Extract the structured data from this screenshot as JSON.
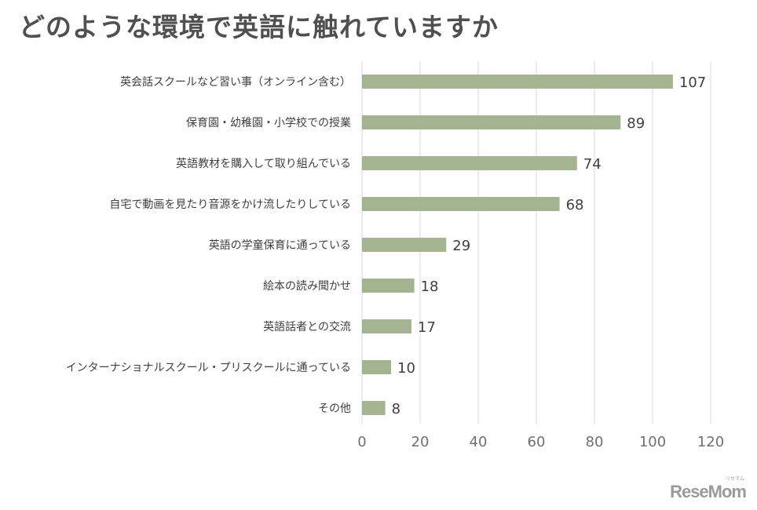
{
  "title": "どのような環境で英語に触れていますか",
  "logo": "ReseMom",
  "logo_ruby": "リセマム",
  "colors": {
    "bar": "#a4b390",
    "grid": "#d9d9d9",
    "text": "#404040"
  },
  "chart_data": {
    "type": "bar",
    "orientation": "horizontal",
    "title": "どのような環境で英語に触れていますか",
    "categories": [
      "英会話スクールなど習い事（オンライン含む）",
      "保育園・幼稚園・小学校での授業",
      "英語教材を購入して取り組んでいる",
      "自宅で動画を見たり音源をかけ流したりしている",
      "英語の学童保育に通っている",
      "絵本の読み聞かせ",
      "英語話者との交流",
      "インターナショナルスクール・プリスクールに通っている",
      "その他"
    ],
    "values": [
      107,
      89,
      74,
      68,
      29,
      18,
      17,
      10,
      8
    ],
    "xlim": [
      0,
      120
    ],
    "ticks": [
      0,
      20,
      40,
      60,
      80,
      100,
      120
    ],
    "grid": true,
    "data_labels": true
  }
}
